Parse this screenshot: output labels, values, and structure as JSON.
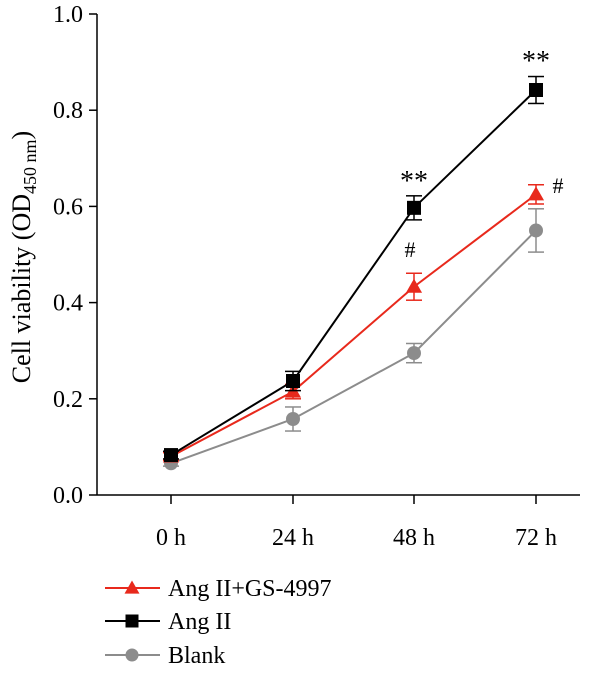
{
  "chart_data": {
    "type": "line",
    "title": "",
    "xlabel": "",
    "ylabel": "Cell viability (OD",
    "ylabel_subscript": "450 nm",
    "ylabel_suffix": ")",
    "categories": [
      "0 h",
      "24 h",
      "48 h",
      "72 h"
    ],
    "ylim": [
      0,
      1.0
    ],
    "yticks": [
      "0.0",
      "0.2",
      "0.4",
      "0.6",
      "0.8",
      "1.0"
    ],
    "grid": false,
    "legend_position": "bottom-left",
    "series": [
      {
        "name": "Ang II+GS-4997",
        "color": "#e8291c",
        "marker": "triangle",
        "values": [
          0.08,
          0.215,
          0.433,
          0.625
        ],
        "errors": [
          0.008,
          0.015,
          0.028,
          0.02
        ],
        "annotations": [
          "",
          "",
          "#",
          "#"
        ]
      },
      {
        "name": "Ang II",
        "color": "#000000",
        "marker": "square",
        "values": [
          0.083,
          0.237,
          0.597,
          0.842
        ],
        "errors": [
          0.008,
          0.02,
          0.025,
          0.028
        ],
        "annotations": [
          "",
          "",
          "**",
          "**"
        ]
      },
      {
        "name": "Blank",
        "color": "#8c8c8c",
        "marker": "circle",
        "values": [
          0.066,
          0.158,
          0.295,
          0.55
        ],
        "errors": [
          0.006,
          0.025,
          0.02,
          0.045
        ],
        "annotations": [
          "",
          "",
          "",
          ""
        ]
      }
    ]
  }
}
